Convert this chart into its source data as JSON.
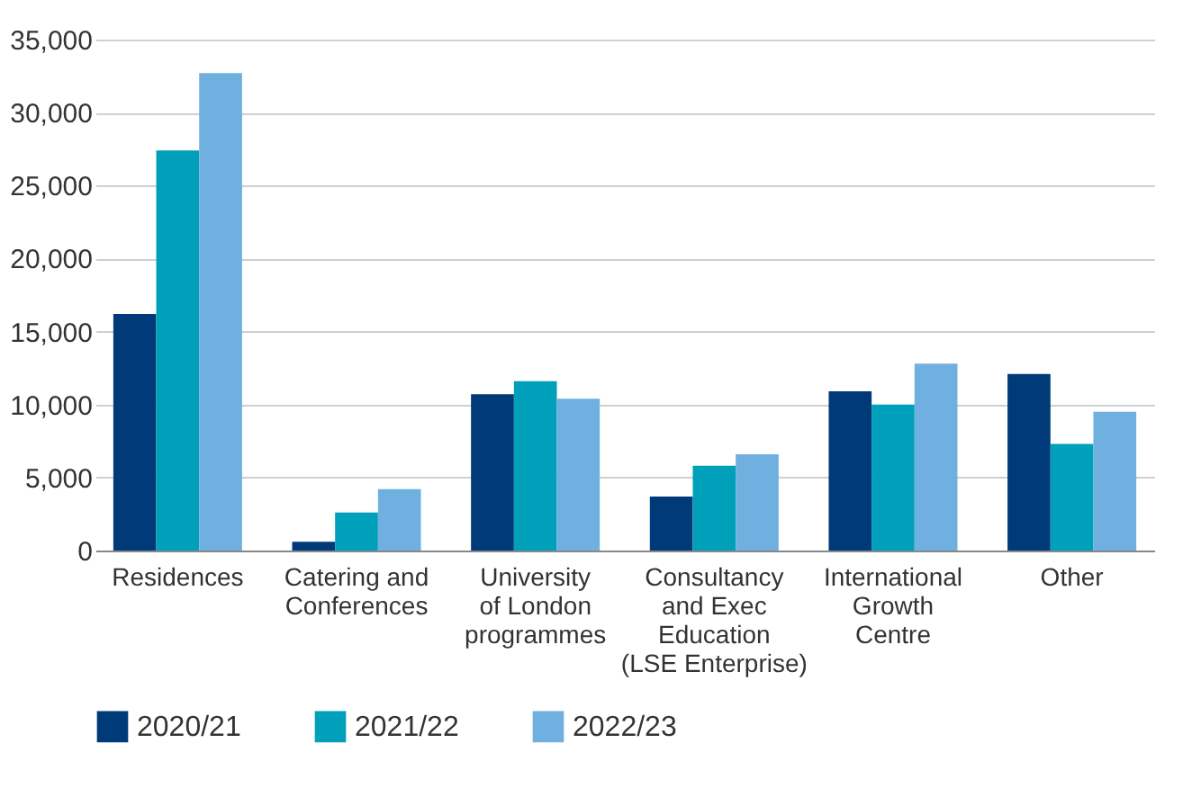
{
  "chart_data": {
    "type": "bar",
    "categories": [
      "Residences",
      "Catering and\nConferences",
      "University\nof London\nprogrammes",
      "Consultancy\nand Exec\nEducation\n(LSE Enterprise)",
      "International\nGrowth\nCentre",
      "Other"
    ],
    "series": [
      {
        "name": "2020/21",
        "color": "#003a78",
        "values": [
          16200,
          600,
          10700,
          3700,
          10900,
          12100
        ]
      },
      {
        "name": "2021/22",
        "color": "#009fba",
        "values": [
          27400,
          2600,
          11600,
          5800,
          10000,
          7300
        ]
      },
      {
        "name": "2022/23",
        "color": "#6fb0e0",
        "values": [
          32700,
          4200,
          10400,
          6600,
          12800,
          9500
        ]
      }
    ],
    "ylim": [
      0,
      35000
    ],
    "yticks": [
      0,
      {
        "value": 5000,
        "label": "5,000"
      },
      {
        "value": 10000,
        "label": "10,000"
      },
      {
        "value": 15000,
        "label": "15,000"
      },
      {
        "value": 20000,
        "label": "20,000"
      },
      {
        "value": 25000,
        "label": "25,000"
      },
      {
        "value": 30000,
        "label": "30,000"
      },
      {
        "value": 35000,
        "label": "35,000"
      }
    ],
    "grid": "y",
    "legend": "bottom"
  }
}
